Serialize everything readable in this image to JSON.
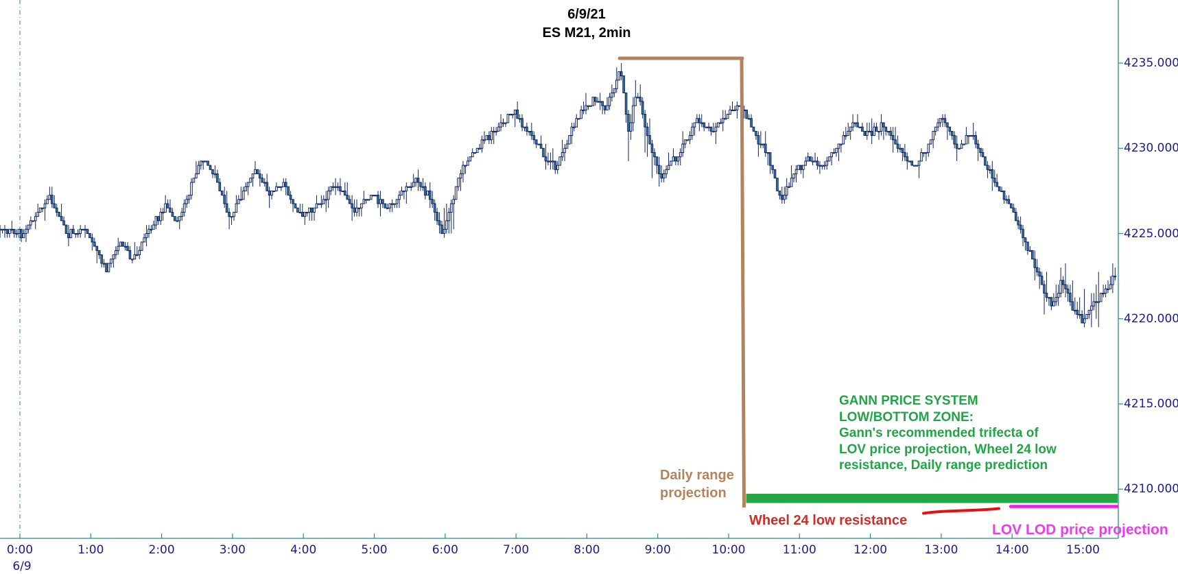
{
  "meta": {
    "title_line1": "6/9/21",
    "title_line2": "ES M21, 2min"
  },
  "axis": {
    "date_label": "6/9",
    "label_color": "#1b1b8a",
    "axis_color": "#2a8a8a",
    "x_ticks": [
      {
        "label": "0:00",
        "hour": 0
      },
      {
        "label": "1:00",
        "hour": 1
      },
      {
        "label": "2:00",
        "hour": 2
      },
      {
        "label": "3:00",
        "hour": 3
      },
      {
        "label": "4:00",
        "hour": 4
      },
      {
        "label": "5:00",
        "hour": 5
      },
      {
        "label": "6:00",
        "hour": 6
      },
      {
        "label": "7:00",
        "hour": 7
      },
      {
        "label": "8:00",
        "hour": 8
      },
      {
        "label": "9:00",
        "hour": 9
      },
      {
        "label": "10:00",
        "hour": 10
      },
      {
        "label": "11:00",
        "hour": 11
      },
      {
        "label": "12:00",
        "hour": 12
      },
      {
        "label": "13:00",
        "hour": 13
      },
      {
        "label": "14:00",
        "hour": 14
      },
      {
        "label": "15:00",
        "hour": 15
      }
    ],
    "y_ticks": [
      {
        "label": "4235.0000",
        "price": 4235
      },
      {
        "label": "4230.0000",
        "price": 4230
      },
      {
        "label": "4225.0000",
        "price": 4225
      },
      {
        "label": "4220.0000",
        "price": 4220
      },
      {
        "label": "4215.0000",
        "price": 4215
      },
      {
        "label": "4210.0000",
        "price": 4210
      }
    ]
  },
  "annotations": {
    "daily_range": {
      "lines": [
        "Daily range",
        "projection"
      ],
      "color": "#b2845e"
    },
    "gann_zone": {
      "lines": [
        "GANN PRICE SYSTEM",
        "LOW/BOTTOM ZONE:",
        "Gann's recommended trifecta of",
        "LOV price projection, Wheel 24 low",
        "resistance, Daily range prediction"
      ],
      "color": "#21a447"
    },
    "wheel24": {
      "label": "Wheel 24 low resistance",
      "color": "#c9302c",
      "line_color": "#e31212"
    },
    "lov_lod": {
      "label": "LOV LOD price projection",
      "color": "#ea3dea",
      "line_color": "#ee1cee"
    },
    "zone_bar_color": "#27a644"
  },
  "chart_data": {
    "type": "candlestick",
    "title": "6/9/21 ES M21, 2min",
    "symbol": "ES M21",
    "interval": "2min",
    "date": "6/9/21",
    "bar_minutes": 2,
    "x_unit": "hour_of_day",
    "x_range": [
      -0.28,
      15.48
    ],
    "y_axis_ticks": [
      4210,
      4215,
      4220,
      4225,
      4230,
      4235
    ],
    "session_start_hour": 0,
    "grid": false,
    "price_path_keypoints": [
      [
        -0.28,
        4225.2
      ],
      [
        0.05,
        4225.0
      ],
      [
        0.45,
        4227.2
      ],
      [
        0.7,
        4224.9
      ],
      [
        0.95,
        4225.3
      ],
      [
        1.25,
        4222.9
      ],
      [
        1.45,
        4224.6
      ],
      [
        1.62,
        4223.4
      ],
      [
        1.85,
        4225.1
      ],
      [
        2.1,
        4226.7
      ],
      [
        2.25,
        4225.6
      ],
      [
        2.6,
        4229.5
      ],
      [
        2.78,
        4228.4
      ],
      [
        3.0,
        4225.9
      ],
      [
        3.35,
        4228.8
      ],
      [
        3.55,
        4227.4
      ],
      [
        3.75,
        4227.9
      ],
      [
        3.95,
        4226.2
      ],
      [
        4.2,
        4226.4
      ],
      [
        4.5,
        4228.0
      ],
      [
        4.75,
        4226.4
      ],
      [
        5.0,
        4227.3
      ],
      [
        5.2,
        4226.5
      ],
      [
        5.6,
        4228.1
      ],
      [
        5.8,
        4227.2
      ],
      [
        6.0,
        4224.9
      ],
      [
        6.25,
        4228.6
      ],
      [
        6.55,
        4230.4
      ],
      [
        6.8,
        4231.3
      ],
      [
        7.0,
        4232.2
      ],
      [
        7.2,
        4231.0
      ],
      [
        7.45,
        4229.5
      ],
      [
        7.6,
        4228.9
      ],
      [
        7.8,
        4230.9
      ],
      [
        8.0,
        4232.3
      ],
      [
        8.15,
        4233.0
      ],
      [
        8.3,
        4232.3
      ],
      [
        8.5,
        4234.6
      ],
      [
        8.62,
        4231.2
      ],
      [
        8.75,
        4233.3
      ],
      [
        8.9,
        4230.3
      ],
      [
        9.1,
        4228.2
      ],
      [
        9.35,
        4229.9
      ],
      [
        9.6,
        4231.7
      ],
      [
        9.8,
        4231.0
      ],
      [
        10.0,
        4231.9
      ],
      [
        10.2,
        4232.6
      ],
      [
        10.4,
        4230.9
      ],
      [
        10.6,
        4229.5
      ],
      [
        10.78,
        4226.9
      ],
      [
        10.95,
        4228.4
      ],
      [
        11.15,
        4229.4
      ],
      [
        11.35,
        4228.9
      ],
      [
        11.6,
        4230.3
      ],
      [
        11.8,
        4231.6
      ],
      [
        12.0,
        4230.8
      ],
      [
        12.2,
        4231.4
      ],
      [
        12.45,
        4229.9
      ],
      [
        12.65,
        4228.8
      ],
      [
        12.85,
        4230.2
      ],
      [
        13.05,
        4232.0
      ],
      [
        13.25,
        4230.0
      ],
      [
        13.45,
        4230.8
      ],
      [
        13.65,
        4229.2
      ],
      [
        13.85,
        4227.6
      ],
      [
        14.05,
        4226.2
      ],
      [
        14.25,
        4224.2
      ],
      [
        14.45,
        4222.0
      ],
      [
        14.6,
        4220.8
      ],
      [
        14.75,
        4222.3
      ],
      [
        14.9,
        4220.6
      ],
      [
        15.05,
        4219.8
      ],
      [
        15.2,
        4221.0
      ],
      [
        15.35,
        4221.6
      ],
      [
        15.47,
        4222.5
      ]
    ],
    "volatile_ranges": [
      [
        5.9,
        6.15
      ],
      [
        8.4,
        9.1
      ],
      [
        14.3,
        15.25
      ]
    ],
    "levels": {
      "daily_high_marker_price": 4235.3,
      "low_zone_price": 4210
    },
    "colors": {
      "up_fill": "#ffffff",
      "down_fill": "#3b7d9b",
      "outline": "#0b2161",
      "axis": "#2a8a8a",
      "tick_label": "#1b1b8a"
    }
  }
}
